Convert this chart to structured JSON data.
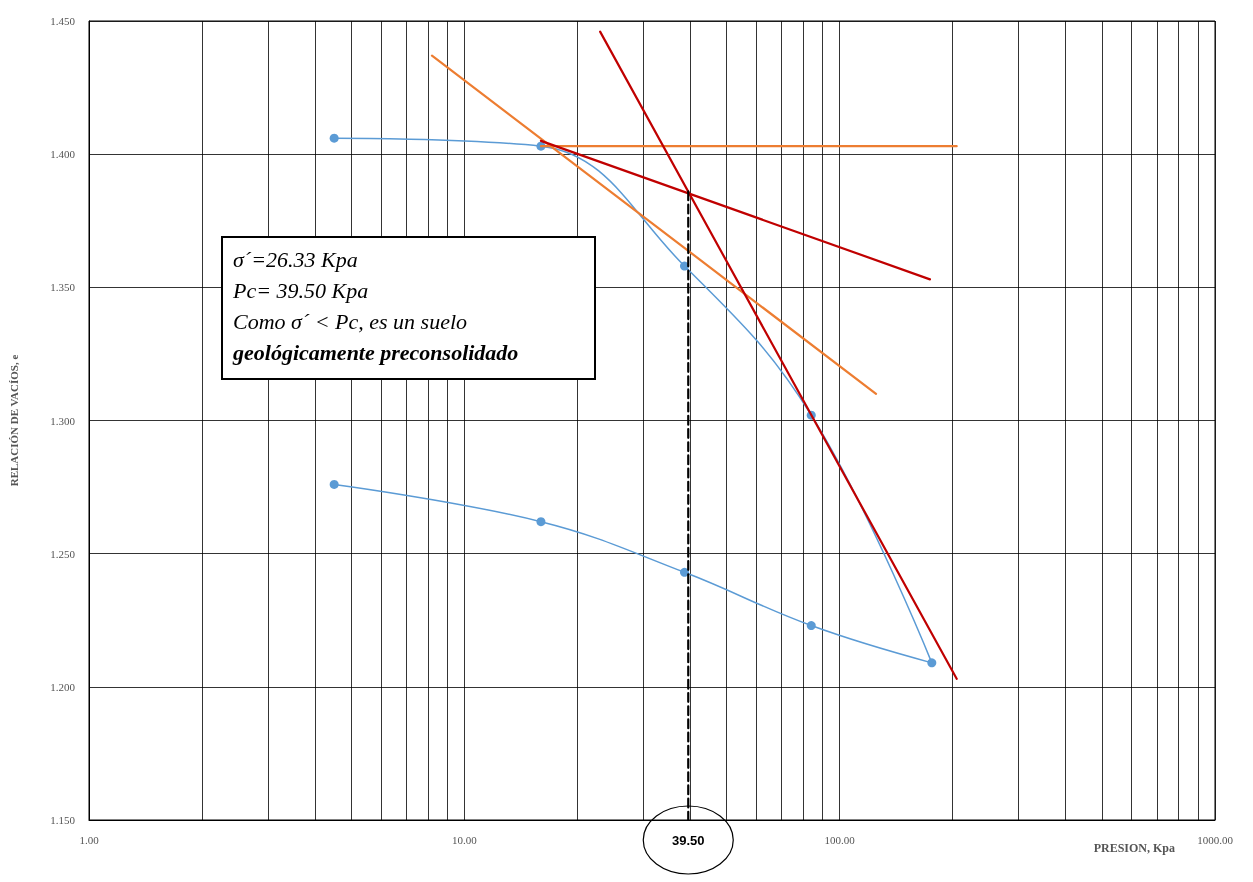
{
  "chart_data": {
    "type": "line",
    "xlabel": "PRESION, Kpa",
    "ylabel": "RELACIÓN DE VACÍOS, e",
    "log": "x",
    "grid": true,
    "xlim": [
      1,
      1000
    ],
    "xticks": [
      {
        "value": 1,
        "label": "1.00"
      },
      {
        "value": 2,
        "label": null
      },
      {
        "value": 3,
        "label": null
      },
      {
        "value": 4,
        "label": null
      },
      {
        "value": 5,
        "label": null
      },
      {
        "value": 6,
        "label": null
      },
      {
        "value": 7,
        "label": null
      },
      {
        "value": 8,
        "label": null
      },
      {
        "value": 9,
        "label": null
      },
      {
        "value": 10,
        "label": "10.00"
      },
      {
        "value": 20,
        "label": null
      },
      {
        "value": 30,
        "label": null
      },
      {
        "value": 40,
        "label": null
      },
      {
        "value": 50,
        "label": null
      },
      {
        "value": 60,
        "label": null
      },
      {
        "value": 70,
        "label": null
      },
      {
        "value": 80,
        "label": null
      },
      {
        "value": 90,
        "label": null
      },
      {
        "value": 100,
        "label": "100.00"
      },
      {
        "value": 200,
        "label": null
      },
      {
        "value": 300,
        "label": null
      },
      {
        "value": 400,
        "label": null
      },
      {
        "value": 500,
        "label": null
      },
      {
        "value": 600,
        "label": null
      },
      {
        "value": 700,
        "label": null
      },
      {
        "value": 800,
        "label": null
      },
      {
        "value": 900,
        "label": null
      },
      {
        "value": 1000,
        "label": "1000.00"
      }
    ],
    "ylim": [
      1.15,
      1.45
    ],
    "yticks": [
      {
        "value": 1.15,
        "label": "1.150"
      },
      {
        "value": 1.2,
        "label": "1.200"
      },
      {
        "value": 1.25,
        "label": "1.250"
      },
      {
        "value": 1.3,
        "label": "1.300"
      },
      {
        "value": 1.35,
        "label": "1.350"
      },
      {
        "value": 1.4,
        "label": "1.400"
      },
      {
        "value": 1.45,
        "label": "1.450"
      }
    ],
    "series": [
      {
        "color": "#5b9bd5",
        "marker": "circle",
        "x": [
          4.5,
          16,
          38.6,
          84,
          176,
          84,
          38.6,
          16,
          4.5
        ],
        "values": [
          1.406,
          1.403,
          1.358,
          1.302,
          1.209,
          1.223,
          1.243,
          1.262,
          1.276
        ]
      },
      {
        "color": "#ed7d31",
        "marker": "none",
        "x": [
          8.2,
          125
        ],
        "values": [
          1.437,
          1.31
        ]
      },
      {
        "color": "#ed7d31",
        "marker": "none",
        "x": [
          16,
          205
        ],
        "values": [
          1.403,
          1.403
        ]
      },
      {
        "color": "#c00000",
        "marker": "none",
        "x": [
          16,
          174
        ],
        "values": [
          1.405,
          1.353
        ]
      },
      {
        "color": "#c00000",
        "marker": "none",
        "x": [
          23,
          205
        ],
        "values": [
          1.446,
          1.203
        ]
      },
      {
        "color": "#000000",
        "marker": "none",
        "line_style": "dashed",
        "x": [
          39.5,
          39.5
        ],
        "values": [
          1.386,
          1.15
        ]
      }
    ],
    "annotations": [
      "σ´=26.33 Kpa",
      "Pc= 39.50   Kpa",
      "Como σ´ < Pc, es un suelo",
      "geológicamente preconsolidado",
      {
        "text": "39.50",
        "x": 39.5,
        "y": 1.15
      }
    ]
  }
}
